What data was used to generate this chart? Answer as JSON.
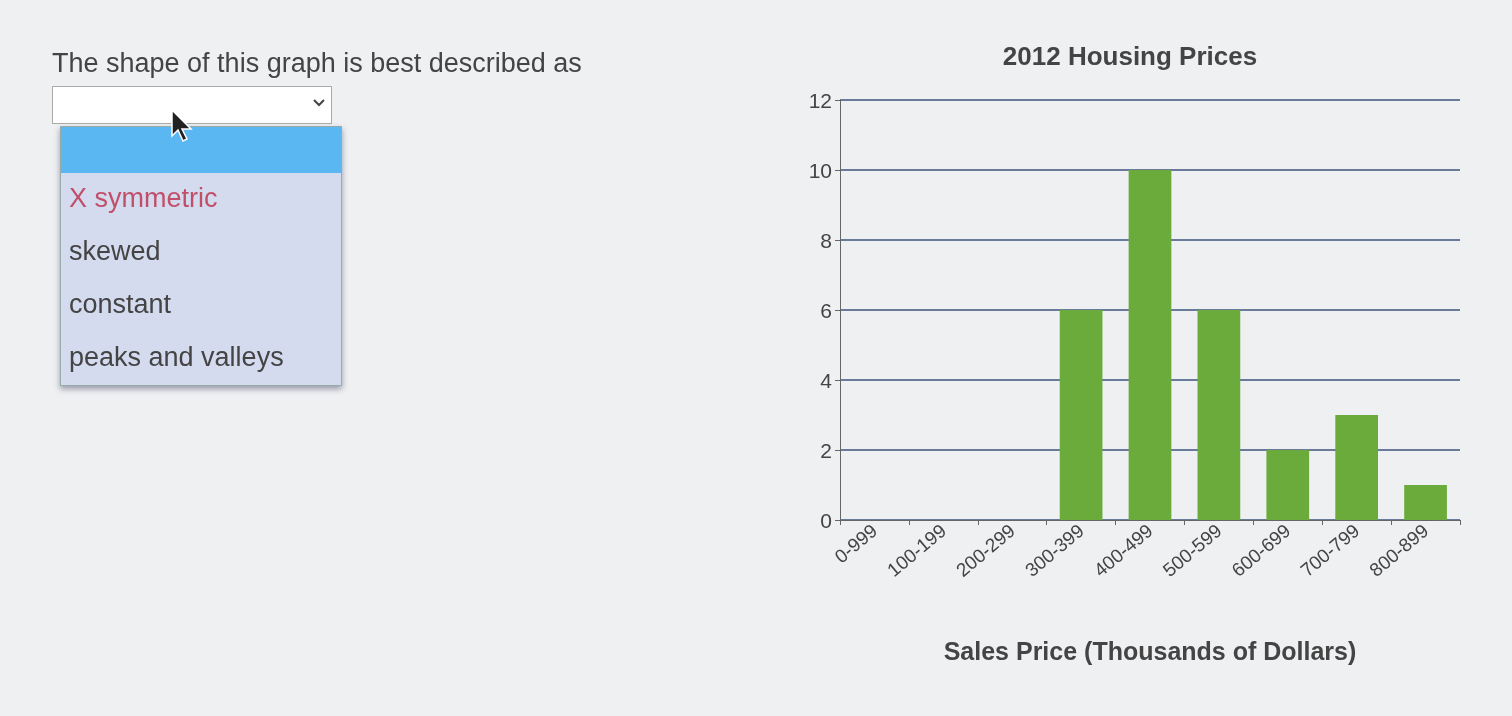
{
  "chart_data": {
    "type": "bar",
    "title": "2012 Housing Prices",
    "xlabel": "Sales Price (Thousands of Dollars)",
    "categories": [
      "0-999",
      "100-199",
      "200-299",
      "300-399",
      "400-499",
      "500-599",
      "600-699",
      "700-799",
      "800-899"
    ],
    "values": [
      0,
      0,
      0,
      6,
      10,
      6,
      2,
      3,
      1
    ],
    "color": "#6aab3c",
    "ylim": [
      0,
      12
    ],
    "yticks": [
      0,
      2,
      4,
      6,
      8,
      10,
      12
    ],
    "grid": "y",
    "annotations": [
      "The shape of this graph is best described as",
      "X symmetric",
      "skewed",
      "constant",
      "peaks and valleys"
    ]
  }
}
